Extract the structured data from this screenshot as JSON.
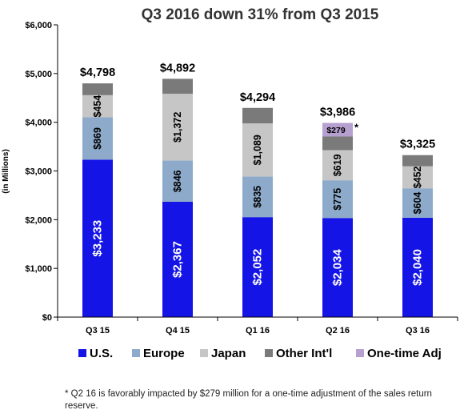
{
  "chart_data": {
    "type": "bar",
    "stacked": true,
    "title": "Q3 2016 down 31% from Q3 2015",
    "ylabel": "(in Millions)",
    "xlabel": "",
    "ylim": [
      0,
      6000
    ],
    "yticks": [
      0,
      1000,
      2000,
      3000,
      4000,
      5000,
      6000
    ],
    "ytick_labels": [
      "$0",
      "$1,000",
      "$2,000",
      "$3,000",
      "$4,000",
      "$5,000",
      "$6,000"
    ],
    "categories": [
      "Q3 15",
      "Q4 15",
      "Q1 16",
      "Q2 16",
      "Q3 16"
    ],
    "grid": false,
    "legend_position": "bottom",
    "series": [
      {
        "name": "U.S.",
        "color": "#1414e6",
        "values": [
          3233,
          2367,
          2052,
          2034,
          2040
        ],
        "labels": [
          "$3,233",
          "$2,367",
          "$2,052",
          "$2,034",
          "$2,040"
        ]
      },
      {
        "name": "Europe",
        "color": "#8eaacb",
        "values": [
          869,
          846,
          835,
          775,
          604
        ],
        "labels": [
          "$869",
          "$846",
          "$835",
          "$775",
          "$604"
        ]
      },
      {
        "name": "Japan",
        "color": "#c6c6c6",
        "values": [
          454,
          1372,
          1089,
          619,
          452
        ],
        "labels": [
          "$454",
          "$1,372",
          "$1,089",
          "$619",
          "$452"
        ]
      },
      {
        "name": "Other Int'l",
        "color": "#7a7a7a",
        "values": [
          242,
          307,
          318,
          279,
          229
        ],
        "labels": [
          "",
          "",
          "",
          "",
          ""
        ]
      },
      {
        "name": "One-time Adj",
        "color": "#b5a0cf",
        "values": [
          0,
          0,
          0,
          279,
          0
        ],
        "labels": [
          "",
          "",
          "",
          "$279",
          ""
        ]
      }
    ],
    "totals": [
      4798,
      4892,
      4294,
      3986,
      3325
    ],
    "total_labels": [
      "$4,798",
      "$4,892",
      "$4,294",
      "$3,986",
      "$3,325"
    ],
    "annotations": [
      {
        "category": "Q2 16",
        "series": "One-time Adj",
        "text": "*"
      }
    ]
  },
  "footnote": "* Q2 16 is favorably impacted by $279 million for a one-time adjustment of the sales return reserve."
}
